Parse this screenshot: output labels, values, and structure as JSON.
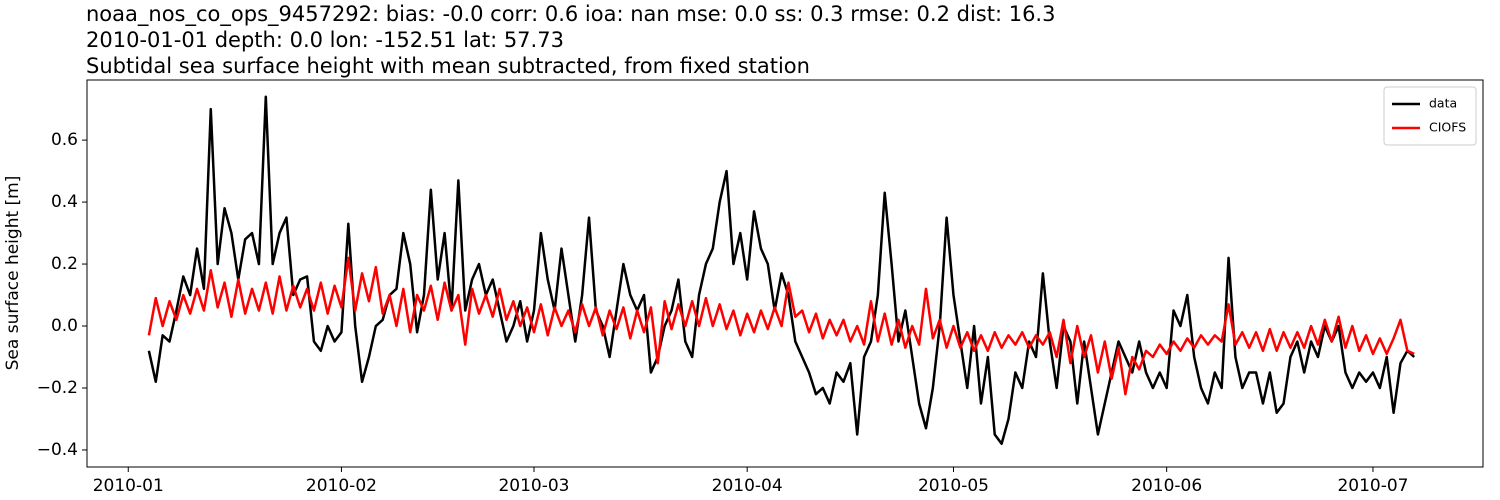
{
  "chart_data": {
    "type": "line",
    "title": "noaa_nos_co_ops_9457292: bias: -0.0  corr: 0.6  ioa: nan  mse: 0.0  ss: 0.3  rmse: 0.2  dist: 16.3",
    "subtitle": "2010-01-01 depth: 0.0 lon: -152.51 lat: 57.73",
    "subtitle2": "Subtidal sea surface height with mean subtracted, from fixed station",
    "y_label": "Sea surface height [m]",
    "legend": "upper right",
    "x": [
      3,
      4,
      5,
      6,
      7,
      8,
      9,
      10,
      11,
      12,
      13,
      14,
      15,
      16,
      17,
      18,
      19,
      20,
      21,
      22,
      23,
      24,
      25,
      26,
      27,
      28,
      29,
      30,
      31,
      32,
      33,
      34,
      35,
      36,
      37,
      38,
      39,
      40,
      41,
      42,
      43,
      44,
      45,
      46,
      47,
      48,
      49,
      50,
      51,
      52,
      53,
      54,
      55,
      56,
      57,
      58,
      59,
      60,
      61,
      62,
      63,
      64,
      65,
      66,
      67,
      68,
      69,
      70,
      71,
      72,
      73,
      74,
      75,
      76,
      77,
      78,
      79,
      80,
      81,
      82,
      83,
      84,
      85,
      86,
      87,
      88,
      89,
      90,
      91,
      92,
      93,
      94,
      95,
      96,
      97,
      98,
      99,
      100,
      101,
      102,
      103,
      104,
      105,
      106,
      107,
      108,
      109,
      110,
      111,
      112,
      113,
      114,
      115,
      116,
      117,
      118,
      119,
      120,
      121,
      122,
      123,
      124,
      125,
      126,
      127,
      128,
      129,
      130,
      131,
      132,
      133,
      134,
      135,
      136,
      137,
      138,
      139,
      140,
      141,
      142,
      143,
      144,
      145,
      146,
      147,
      148,
      149,
      150,
      151,
      152,
      153,
      154,
      155,
      156,
      157,
      158,
      159,
      160,
      161,
      162,
      163,
      164,
      165,
      166,
      167,
      168,
      169,
      170,
      171,
      172,
      173,
      174,
      175,
      176,
      177,
      178,
      179,
      180,
      181,
      182,
      183,
      184,
      185,
      186,
      187
    ],
    "series": [
      {
        "name": "data",
        "color": "#000000",
        "values": [
          -0.08,
          -0.18,
          -0.03,
          -0.05,
          0.05,
          0.16,
          0.1,
          0.25,
          0.12,
          0.7,
          0.2,
          0.38,
          0.3,
          0.15,
          0.28,
          0.3,
          0.2,
          0.74,
          0.2,
          0.3,
          0.35,
          0.1,
          0.15,
          0.16,
          -0.05,
          -0.08,
          0.0,
          -0.05,
          -0.02,
          0.33,
          0.0,
          -0.18,
          -0.1,
          0.0,
          0.02,
          0.1,
          0.12,
          0.3,
          0.2,
          -0.02,
          0.1,
          0.44,
          0.15,
          0.3,
          0.05,
          0.47,
          0.05,
          0.15,
          0.2,
          0.1,
          0.15,
          0.05,
          -0.05,
          0.0,
          0.08,
          -0.05,
          0.05,
          0.3,
          0.15,
          0.05,
          0.25,
          0.1,
          -0.05,
          0.1,
          0.35,
          0.05,
          0.0,
          -0.1,
          0.05,
          0.2,
          0.1,
          0.05,
          0.1,
          -0.15,
          -0.1,
          0.0,
          0.05,
          0.15,
          -0.05,
          -0.1,
          0.1,
          0.2,
          0.25,
          0.4,
          0.5,
          0.2,
          0.3,
          0.15,
          0.37,
          0.25,
          0.2,
          0.05,
          0.17,
          0.1,
          -0.05,
          -0.1,
          -0.15,
          -0.22,
          -0.2,
          -0.25,
          -0.15,
          -0.18,
          -0.12,
          -0.35,
          -0.1,
          -0.05,
          0.1,
          0.43,
          0.2,
          -0.05,
          0.05,
          -0.1,
          -0.25,
          -0.33,
          -0.2,
          0.0,
          0.35,
          0.1,
          -0.05,
          -0.2,
          0.0,
          -0.25,
          -0.1,
          -0.35,
          -0.38,
          -0.3,
          -0.15,
          -0.2,
          -0.05,
          -0.1,
          0.17,
          -0.05,
          -0.2,
          0.0,
          -0.05,
          -0.25,
          -0.05,
          -0.2,
          -0.35,
          -0.25,
          -0.15,
          -0.05,
          -0.1,
          -0.15,
          -0.05,
          -0.15,
          -0.2,
          -0.15,
          -0.2,
          0.05,
          0.0,
          0.1,
          -0.1,
          -0.2,
          -0.25,
          -0.15,
          -0.2,
          0.22,
          -0.1,
          -0.2,
          -0.15,
          -0.15,
          -0.25,
          -0.15,
          -0.28,
          -0.25,
          -0.1,
          -0.05,
          -0.15,
          -0.05,
          -0.1,
          0.0,
          -0.05,
          0.0,
          -0.15,
          -0.2,
          -0.15,
          -0.18,
          -0.15,
          -0.2,
          -0.1,
          -0.28,
          -0.12,
          -0.08,
          -0.1
        ]
      },
      {
        "name": "CIOFS",
        "color": "#ff0000",
        "values": [
          -0.03,
          0.09,
          0.0,
          0.08,
          0.02,
          0.1,
          0.04,
          0.12,
          0.05,
          0.18,
          0.06,
          0.14,
          0.03,
          0.15,
          0.04,
          0.12,
          0.05,
          0.14,
          0.04,
          0.16,
          0.05,
          0.13,
          0.06,
          0.12,
          0.05,
          0.14,
          0.04,
          0.13,
          0.06,
          0.22,
          0.05,
          0.17,
          0.08,
          0.19,
          0.04,
          0.1,
          0.0,
          0.12,
          -0.02,
          0.1,
          0.05,
          0.13,
          0.02,
          0.14,
          0.05,
          0.1,
          -0.06,
          0.12,
          0.04,
          0.1,
          0.03,
          0.12,
          0.02,
          0.08,
          0.0,
          0.06,
          -0.02,
          0.07,
          -0.03,
          0.06,
          0.0,
          0.05,
          -0.02,
          0.07,
          0.0,
          0.06,
          -0.03,
          0.05,
          -0.01,
          0.06,
          -0.04,
          0.05,
          -0.02,
          0.06,
          -0.12,
          0.08,
          -0.01,
          0.07,
          0.0,
          0.08,
          0.0,
          0.09,
          0.0,
          0.07,
          -0.01,
          0.05,
          -0.03,
          0.04,
          -0.02,
          0.05,
          -0.01,
          0.06,
          0.0,
          0.14,
          0.03,
          0.05,
          -0.02,
          0.04,
          -0.04,
          0.02,
          -0.03,
          0.02,
          -0.05,
          0.0,
          -0.06,
          0.08,
          -0.05,
          0.04,
          -0.06,
          0.02,
          -0.07,
          0.0,
          -0.06,
          0.12,
          -0.04,
          0.02,
          -0.07,
          0.0,
          -0.07,
          -0.02,
          -0.08,
          -0.03,
          -0.08,
          -0.02,
          -0.07,
          -0.03,
          -0.06,
          -0.02,
          -0.07,
          -0.03,
          -0.06,
          -0.02,
          -0.1,
          0.02,
          -0.12,
          0.0,
          -0.1,
          -0.03,
          -0.15,
          -0.05,
          -0.17,
          -0.07,
          -0.22,
          -0.1,
          -0.14,
          -0.08,
          -0.1,
          -0.06,
          -0.09,
          -0.05,
          -0.08,
          -0.04,
          -0.07,
          -0.03,
          -0.06,
          -0.03,
          -0.05,
          0.07,
          -0.06,
          -0.02,
          -0.07,
          -0.02,
          -0.08,
          -0.01,
          -0.08,
          -0.02,
          -0.07,
          -0.02,
          -0.07,
          0.0,
          -0.06,
          0.02,
          -0.05,
          0.03,
          -0.07,
          0.0,
          -0.08,
          -0.03,
          -0.09,
          -0.04,
          -0.09,
          -0.04,
          0.02,
          -0.08,
          -0.09
        ]
      }
    ],
    "xlim": [
      -6,
      197
    ],
    "xticks": [
      {
        "value": 0,
        "label": "2010-01"
      },
      {
        "value": 31,
        "label": "2010-02"
      },
      {
        "value": 59,
        "label": "2010-03"
      },
      {
        "value": 90,
        "label": "2010-04"
      },
      {
        "value": 120,
        "label": "2010-05"
      },
      {
        "value": 151,
        "label": "2010-06"
      },
      {
        "value": 181,
        "label": "2010-07"
      }
    ],
    "ylim": [
      -0.455,
      0.794
    ],
    "yticks": [
      {
        "value": -0.4,
        "label": "−0.4"
      },
      {
        "value": -0.2,
        "label": "−0.2"
      },
      {
        "value": 0,
        "label": "0.0"
      },
      0.2,
      0.4,
      0.6
    ],
    "grid": false
  }
}
